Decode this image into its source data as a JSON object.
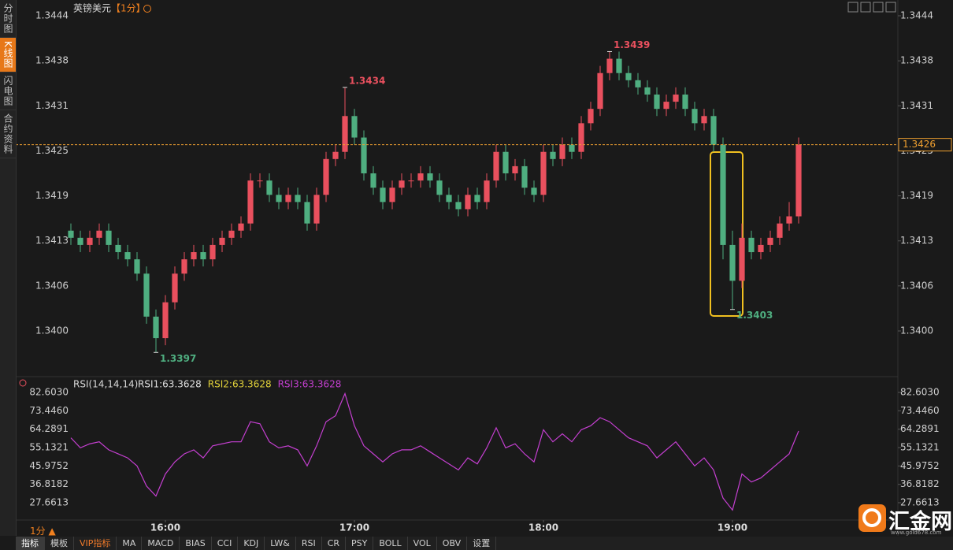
{
  "sidebar": {
    "tabs": [
      "分时图",
      "K线图",
      "闪电图",
      "合约资料"
    ],
    "active": 1
  },
  "chart_data": [
    {
      "type": "candlestick",
      "title": "英镑美元",
      "period": "【1分】",
      "x": [
        930,
        933,
        936,
        939,
        942,
        945,
        948,
        951,
        954,
        957,
        960,
        963,
        966,
        969,
        972,
        975,
        978,
        981,
        984,
        987,
        990,
        993,
        996,
        999,
        1002,
        1005,
        1008,
        1011,
        1014,
        1017,
        1020,
        1023,
        1026,
        1029,
        1032,
        1035,
        1038,
        1041,
        1044,
        1047,
        1050,
        1053,
        1056,
        1059,
        1062,
        1065,
        1068,
        1071,
        1074,
        1077,
        1080,
        1083,
        1086,
        1089,
        1092,
        1095,
        1098,
        1101,
        1104,
        1107,
        1110,
        1113,
        1116,
        1119,
        1122,
        1125,
        1128,
        1131,
        1134,
        1137,
        1140,
        1143,
        1146,
        1149,
        1152,
        1155,
        1158,
        1161
      ],
      "open": [
        1.3414,
        1.3413,
        1.3412,
        1.3413,
        1.3414,
        1.3412,
        1.3411,
        1.341,
        1.3408,
        1.3402,
        1.3399,
        1.3404,
        1.3408,
        1.341,
        1.3411,
        1.341,
        1.3412,
        1.3413,
        1.3414,
        1.3415,
        1.3421,
        1.3421,
        1.3419,
        1.3418,
        1.3419,
        1.3418,
        1.3415,
        1.3419,
        1.3424,
        1.3425,
        1.343,
        1.3427,
        1.3422,
        1.342,
        1.3418,
        1.342,
        1.3421,
        1.3421,
        1.3422,
        1.3421,
        1.3419,
        1.3418,
        1.3417,
        1.3419,
        1.3418,
        1.3421,
        1.3425,
        1.3422,
        1.3423,
        1.342,
        1.3419,
        1.3425,
        1.3424,
        1.3426,
        1.3425,
        1.3429,
        1.3431,
        1.3436,
        1.3438,
        1.3436,
        1.3435,
        1.3434,
        1.3433,
        1.3431,
        1.3432,
        1.3433,
        1.3431,
        1.3429,
        1.343,
        1.3426,
        1.3412,
        1.3407,
        1.3413,
        1.3411,
        1.3412,
        1.3413,
        1.3415,
        1.3416
      ],
      "high": [
        1.3415,
        1.3414,
        1.3414,
        1.3415,
        1.3415,
        1.3413,
        1.3412,
        1.3411,
        1.3409,
        1.3403,
        1.3405,
        1.3409,
        1.3411,
        1.3412,
        1.3412,
        1.3413,
        1.3414,
        1.3415,
        1.3416,
        1.3422,
        1.3422,
        1.3422,
        1.342,
        1.342,
        1.342,
        1.3419,
        1.342,
        1.3425,
        1.3426,
        1.3434,
        1.3431,
        1.3428,
        1.3423,
        1.3421,
        1.3421,
        1.3422,
        1.3422,
        1.3423,
        1.3423,
        1.3422,
        1.342,
        1.3419,
        1.342,
        1.342,
        1.3422,
        1.3426,
        1.3426,
        1.3424,
        1.3424,
        1.3421,
        1.3426,
        1.3426,
        1.3427,
        1.3427,
        1.343,
        1.3432,
        1.3437,
        1.3439,
        1.3439,
        1.3437,
        1.3436,
        1.3435,
        1.3434,
        1.3433,
        1.3434,
        1.3434,
        1.3432,
        1.3431,
        1.3431,
        1.3427,
        1.3414,
        1.3415,
        1.3414,
        1.3413,
        1.3414,
        1.3416,
        1.3418,
        1.3427
      ],
      "low": [
        1.3412,
        1.3411,
        1.3411,
        1.3412,
        1.3411,
        1.341,
        1.3409,
        1.3407,
        1.3401,
        1.3397,
        1.3398,
        1.3403,
        1.3407,
        1.3409,
        1.3409,
        1.3409,
        1.3411,
        1.3412,
        1.3413,
        1.3414,
        1.342,
        1.3418,
        1.3417,
        1.3417,
        1.3417,
        1.3414,
        1.3414,
        1.3418,
        1.3423,
        1.3424,
        1.3426,
        1.3421,
        1.3419,
        1.3417,
        1.3417,
        1.3419,
        1.342,
        1.342,
        1.342,
        1.3418,
        1.3417,
        1.3416,
        1.3416,
        1.3417,
        1.3417,
        1.342,
        1.3421,
        1.3421,
        1.3419,
        1.3418,
        1.3418,
        1.3423,
        1.3423,
        1.3424,
        1.3424,
        1.3428,
        1.343,
        1.3435,
        1.3435,
        1.3434,
        1.3433,
        1.3432,
        1.343,
        1.343,
        1.3431,
        1.343,
        1.3428,
        1.3428,
        1.3425,
        1.341,
        1.3403,
        1.3406,
        1.341,
        1.341,
        1.3411,
        1.3412,
        1.3414,
        1.3415
      ],
      "close": [
        1.3413,
        1.3412,
        1.3413,
        1.3414,
        1.3412,
        1.3411,
        1.341,
        1.3408,
        1.3402,
        1.3399,
        1.3404,
        1.3408,
        1.341,
        1.3411,
        1.341,
        1.3412,
        1.3413,
        1.3414,
        1.3415,
        1.3421,
        1.3421,
        1.3419,
        1.3418,
        1.3419,
        1.3418,
        1.3415,
        1.3419,
        1.3424,
        1.3425,
        1.343,
        1.3427,
        1.3422,
        1.342,
        1.3418,
        1.342,
        1.3421,
        1.3421,
        1.3422,
        1.3421,
        1.3419,
        1.3418,
        1.3417,
        1.3419,
        1.3418,
        1.3421,
        1.3425,
        1.3422,
        1.3423,
        1.342,
        1.3419,
        1.3425,
        1.3424,
        1.3426,
        1.3425,
        1.3429,
        1.3431,
        1.3436,
        1.3438,
        1.3436,
        1.3435,
        1.3434,
        1.3433,
        1.3431,
        1.3432,
        1.3433,
        1.3431,
        1.3429,
        1.343,
        1.3426,
        1.3412,
        1.3407,
        1.3413,
        1.3411,
        1.3412,
        1.3413,
        1.3415,
        1.3416,
        1.3426
      ],
      "up_color": "#e9505e",
      "down_color": "#4fae80",
      "xlim": [
        912.5,
        1192.5
      ],
      "xticks": [
        {
          "value": 960,
          "label": "16:00"
        },
        {
          "value": 1020,
          "label": "17:00"
        },
        {
          "value": 1080,
          "label": "18:00"
        },
        {
          "value": 1140,
          "label": "19:00"
        }
      ],
      "ylim": [
        1.33945,
        1.34451
      ],
      "yticks": [
        1.3444,
        {
          "value": 1.343771,
          "label": "1.3438"
        },
        {
          "value": 1.343143,
          "label": "1.3431"
        },
        {
          "value": 1.342514,
          "label": "1.3425"
        },
        {
          "value": 1.341886,
          "label": "1.3419"
        },
        {
          "value": 1.341257,
          "label": "1.3413"
        },
        {
          "value": 1.340629,
          "label": "1.3406"
        },
        {
          "value": 1.34,
          "label": "1.3400"
        }
      ],
      "grid": false,
      "annotations": [
        {
          "value": 1.3439,
          "x": 1101,
          "color": "#e9505e"
        },
        {
          "value": 1.3434,
          "x": 1017,
          "color": "#e9505e"
        },
        {
          "value": 1.3397,
          "x": 957,
          "color": "#4fae80"
        },
        {
          "value": 1.3403,
          "x": 1140,
          "color": "#4fae80"
        }
      ],
      "last_price": 1.3426,
      "last_price_color": "#f0a030"
    },
    {
      "type": "line",
      "legend_title": "RSI(14,14,14)",
      "legend": [
        {
          "name": "RSI1:63.3628",
          "color": "#e0e0e0"
        },
        {
          "name": "RSI2:63.3628",
          "color": "#e3d33a"
        },
        {
          "name": "RSI3:63.3628",
          "color": "#c43fd0"
        }
      ],
      "series": [
        {
          "color": "#c43fd0",
          "values": [
            60,
            55,
            57,
            58,
            54,
            52,
            50,
            46,
            36,
            31,
            42,
            48,
            52,
            54,
            50,
            56,
            57,
            58,
            58,
            68,
            67,
            58,
            55,
            56,
            54,
            46,
            56,
            68,
            71,
            82,
            66,
            56,
            52,
            48,
            52,
            54,
            54,
            56,
            53,
            50,
            47,
            44,
            50,
            47,
            55,
            65,
            55,
            57,
            52,
            48,
            64,
            58,
            62,
            58,
            64,
            66,
            70,
            68,
            64,
            60,
            58,
            56,
            50,
            54,
            58,
            52,
            46,
            50,
            44,
            30,
            24,
            42,
            38,
            40,
            44,
            48,
            52,
            63.3628
          ]
        }
      ],
      "ylim": [
        19.03,
        89.67
      ],
      "yticks": [
        {
          "value": 82.603,
          "label": "82.6030"
        },
        {
          "value": 73.446,
          "label": "73.4460"
        },
        64.2891,
        55.1321,
        45.9752,
        36.8182,
        27.6613
      ],
      "grid": false
    }
  ],
  "toolbar": {
    "period": "1分 ▲",
    "items": [
      "指标",
      "模板",
      "VIP指标",
      "MA",
      "MACD",
      "BIAS",
      "CCI",
      "KDJ",
      "LW&",
      "RSI",
      "CR",
      "PSY",
      "BOLL",
      "VOL",
      "OBV",
      "设置"
    ]
  },
  "logo": {
    "name": "汇金网",
    "url": "www.gold678.com"
  }
}
